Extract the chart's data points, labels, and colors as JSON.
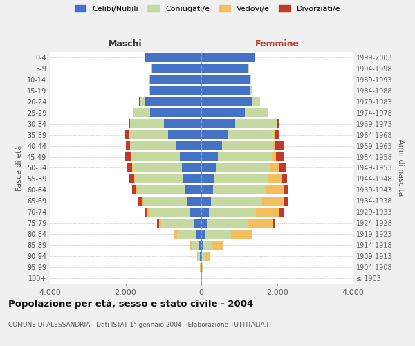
{
  "age_groups": [
    "100+",
    "95-99",
    "90-94",
    "85-89",
    "80-84",
    "75-79",
    "70-74",
    "65-69",
    "60-64",
    "55-59",
    "50-54",
    "45-49",
    "40-44",
    "35-39",
    "30-34",
    "25-29",
    "20-24",
    "15-19",
    "10-14",
    "5-9",
    "0-4"
  ],
  "birth_years": [
    "≤ 1903",
    "1904-1908",
    "1909-1913",
    "1914-1918",
    "1919-1923",
    "1924-1928",
    "1929-1933",
    "1934-1938",
    "1939-1943",
    "1944-1948",
    "1949-1953",
    "1954-1958",
    "1959-1963",
    "1964-1968",
    "1969-1973",
    "1974-1978",
    "1979-1983",
    "1984-1988",
    "1989-1993",
    "1994-1998",
    "1999-2003"
  ],
  "maschi": {
    "celibi": [
      5,
      10,
      30,
      60,
      120,
      210,
      310,
      370,
      430,
      470,
      510,
      570,
      680,
      870,
      980,
      1350,
      1480,
      1350,
      1350,
      1300,
      1480
    ],
    "coniugati": [
      3,
      15,
      55,
      180,
      520,
      850,
      1050,
      1150,
      1250,
      1280,
      1300,
      1270,
      1200,
      1050,
      900,
      450,
      150,
      20,
      10,
      5,
      5
    ],
    "vedovi": [
      1,
      5,
      20,
      50,
      80,
      50,
      60,
      55,
      40,
      30,
      25,
      15,
      10,
      5,
      5,
      5,
      3,
      2,
      1,
      1,
      1
    ],
    "divorziati": [
      0,
      0,
      2,
      5,
      5,
      50,
      80,
      80,
      100,
      120,
      130,
      160,
      100,
      80,
      30,
      10,
      5,
      3,
      1,
      1,
      1
    ]
  },
  "femmine": {
    "nubili": [
      5,
      10,
      25,
      50,
      90,
      150,
      200,
      260,
      310,
      340,
      380,
      430,
      540,
      720,
      900,
      1150,
      1350,
      1300,
      1300,
      1250,
      1400
    ],
    "coniugate": [
      3,
      20,
      80,
      250,
      700,
      1100,
      1250,
      1350,
      1400,
      1430,
      1450,
      1430,
      1350,
      1200,
      1100,
      600,
      200,
      30,
      15,
      5,
      5
    ],
    "vedove": [
      2,
      30,
      120,
      280,
      550,
      650,
      620,
      570,
      470,
      350,
      220,
      120,
      70,
      30,
      15,
      10,
      5,
      3,
      2,
      1,
      1
    ],
    "divorziate": [
      0,
      0,
      3,
      5,
      10,
      60,
      100,
      100,
      130,
      150,
      170,
      200,
      220,
      100,
      40,
      20,
      5,
      3,
      2,
      1,
      1
    ]
  },
  "colors": {
    "celibi": "#4472c4",
    "coniugati": "#c5d9a0",
    "vedovi": "#f4be5e",
    "divorziati": "#c0392b"
  },
  "title": "Popolazione per età, sesso e stato civile - 2004",
  "subtitle": "COMUNE DI ALESSANDRIA - Dati ISTAT 1° gennaio 2004 - Elaborazione TUTTITALIA.IT",
  "ylabel_left": "Fasce di età",
  "ylabel_right": "Anni di nascita",
  "xlabel_left": "Maschi",
  "xlabel_right": "Femmine",
  "xlim": 4000,
  "xticks": [
    -4000,
    -2000,
    0,
    2000,
    4000
  ],
  "xticklabels": [
    "4.000",
    "2.000",
    "0",
    "2.000",
    "4.000"
  ],
  "bg_color": "#f0f0f0",
  "plot_bg": "#ffffff",
  "grid_color": "#cccccc",
  "legend_labels": [
    "Celibi/Nubili",
    "Coniugati/e",
    "Vedovi/e",
    "Divorziati/e"
  ]
}
